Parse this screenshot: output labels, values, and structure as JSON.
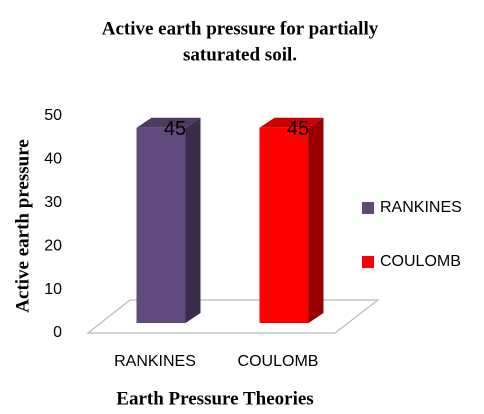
{
  "chart_data": {
    "type": "bar",
    "title": "Active earth pressure for partially saturated soil.",
    "xlabel": "Earth Pressure Theories",
    "ylabel": "Active earth pressure",
    "categories": [
      "RANKINES",
      "COULOMB"
    ],
    "values": [
      45,
      45
    ],
    "colors": [
      "#604a7b",
      "#ff0000"
    ],
    "ylim": [
      0,
      50
    ],
    "yticks": [
      0,
      10,
      20,
      30,
      40,
      50
    ],
    "legend": "right"
  }
}
